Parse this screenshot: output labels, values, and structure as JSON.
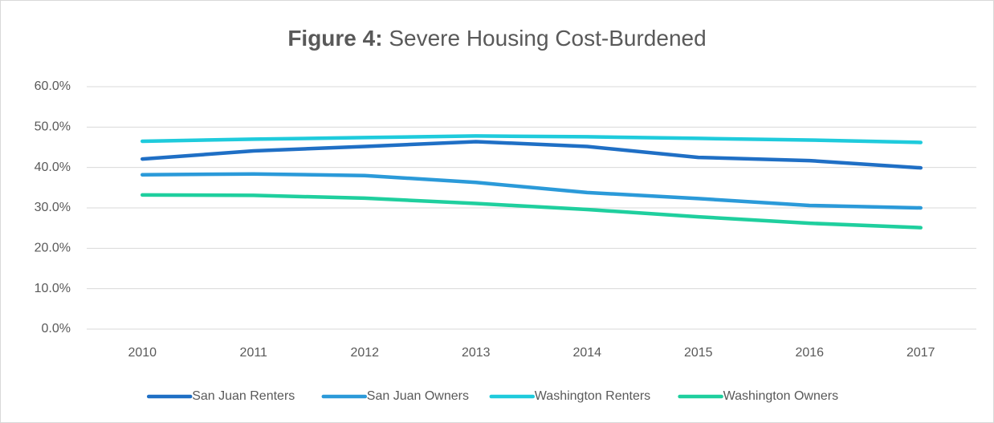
{
  "chart_data": {
    "type": "line",
    "title": [
      "Figure 4:",
      "Severe Housing Cost-Burdened"
    ],
    "categories": [
      "2010",
      "2011",
      "2012",
      "2013",
      "2014",
      "2015",
      "2016",
      "2017"
    ],
    "series": [
      {
        "name": "San Juan Renters",
        "color": "#1f6fc5",
        "values": [
          42.1,
          44.1,
          45.2,
          46.4,
          45.2,
          42.5,
          41.7,
          39.9
        ]
      },
      {
        "name": "San Juan Owners",
        "color": "#2b9ad9",
        "values": [
          38.2,
          38.4,
          38.0,
          36.3,
          33.8,
          32.3,
          30.6,
          30.0
        ]
      },
      {
        "name": "Washington Renters",
        "color": "#1fcbdc",
        "values": [
          46.5,
          47.0,
          47.4,
          47.8,
          47.6,
          47.2,
          46.8,
          46.2
        ]
      },
      {
        "name": "Washington Owners",
        "color": "#1fcf9e",
        "values": [
          33.2,
          33.1,
          32.4,
          31.1,
          29.6,
          27.8,
          26.2,
          25.1
        ]
      }
    ],
    "ylim": [
      0,
      60
    ],
    "yticks": [
      {
        "value": 0,
        "label": "0.0%"
      },
      {
        "value": 10,
        "label": "10.0%"
      },
      {
        "value": 20,
        "label": "20.0%"
      },
      {
        "value": 30,
        "label": "30.0%"
      },
      {
        "value": 40,
        "label": "40.0%"
      },
      {
        "value": 50,
        "label": "50.0%"
      },
      {
        "value": 60,
        "label": "60.0%"
      }
    ],
    "grid": true,
    "legend": "bottom"
  }
}
